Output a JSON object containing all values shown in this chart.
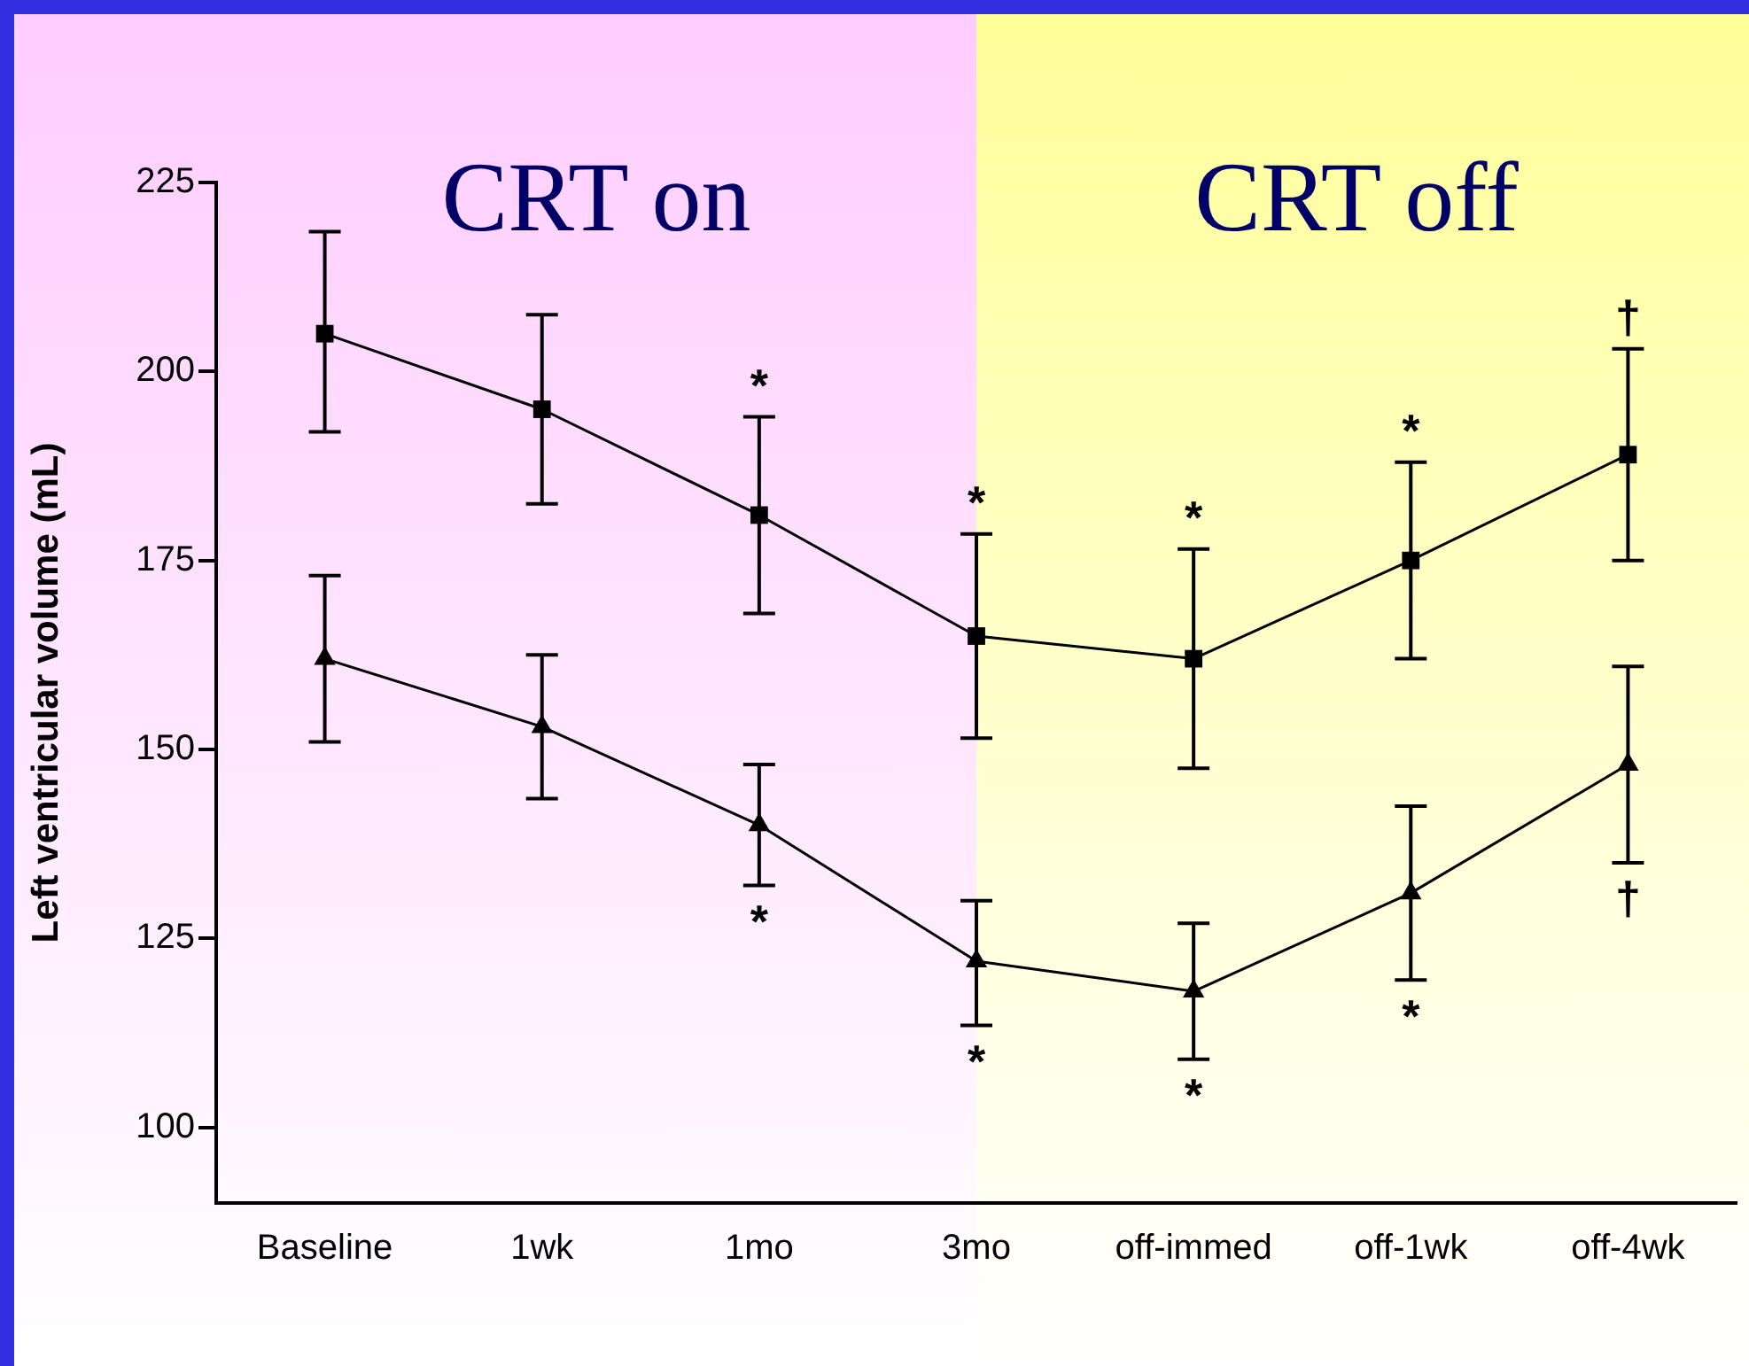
{
  "chart_data": {
    "type": "line",
    "ylabel": "Left ventricular volume (mL)",
    "categories": [
      "Baseline",
      "1wk",
      "1mo",
      "3mo",
      "off-immed",
      "off-1wk",
      "off-4wk"
    ],
    "series": [
      {
        "color": "#000000",
        "marker": "square",
        "values": [
          205,
          195,
          181,
          165,
          162,
          175,
          189
        ],
        "errors": [
          [
            192,
            218.5
          ],
          [
            182.5,
            207.5
          ],
          [
            168,
            194
          ],
          [
            151.5,
            178.5
          ],
          [
            147.5,
            176.5
          ],
          [
            162,
            188
          ],
          [
            175,
            203
          ]
        ]
      },
      {
        "color": "#000000",
        "marker": "triangle",
        "values": [
          162,
          153,
          140,
          122,
          118,
          131,
          148
        ],
        "errors": [
          [
            151,
            173
          ],
          [
            143.5,
            162.5
          ],
          [
            132,
            148
          ],
          [
            113.5,
            130
          ],
          [
            109,
            127
          ],
          [
            119.5,
            142.5
          ],
          [
            135,
            161
          ]
        ]
      }
    ],
    "ylim": [
      90,
      225
    ],
    "yticks": [
      100,
      125,
      150,
      175,
      200,
      225
    ],
    "grid": false,
    "legend": false,
    "line_style": "solid",
    "bands": [
      {
        "axis": "x",
        "from": "Baseline",
        "to": "3mo",
        "label": "CRT on",
        "color": "#ffccff"
      },
      {
        "axis": "x",
        "from": "3mo",
        "to": "off-4wk",
        "label": "CRT off",
        "color": "#ffff99"
      }
    ],
    "annotations": [
      {
        "text": "*",
        "x": "1mo",
        "y": 181
      },
      {
        "text": "*",
        "x": "3mo",
        "y": 165
      },
      {
        "text": "*",
        "x": "off-immed",
        "y": 162
      },
      {
        "text": "*",
        "x": "off-1wk",
        "y": 175
      },
      {
        "text": "†",
        "x": "off-4wk",
        "y": 189
      },
      {
        "text": "*",
        "x": "1mo",
        "y": 140
      },
      {
        "text": "*",
        "x": "3mo",
        "y": 122
      },
      {
        "text": "*",
        "x": "off-immed",
        "y": 118
      },
      {
        "text": "*",
        "x": "off-1wk",
        "y": 131
      },
      {
        "text": "†",
        "x": "off-4wk",
        "y": 148
      }
    ]
  }
}
